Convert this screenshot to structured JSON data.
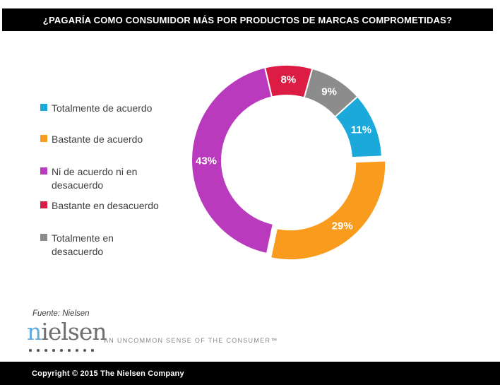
{
  "title_bar": {
    "text": "¿PAGARÍA COMO CONSUMIDOR MÁS POR PRODUCTOS DE MARCAS COMPROMETIDAS?"
  },
  "chart_data": {
    "type": "pie",
    "subtype": "donut",
    "title": "¿Pagaría como consumidor más por productos de marcas comprometidas?",
    "unit": "%",
    "direction": "clockwise",
    "start_angle_deg": 48,
    "inner_radius_ratio": 0.685,
    "legend_position": "left",
    "segments": [
      {
        "label": "Totalmente de acuerdo",
        "value": 11,
        "data_label": "11%",
        "color": "#1BA9DC",
        "exploded": false
      },
      {
        "label": "Bastante de acuerdo",
        "value": 29,
        "data_label": "29%",
        "color": "#F99B1C",
        "exploded": true
      },
      {
        "label": "Ni de acuerdo ni en desacuerdo",
        "value": 43,
        "data_label": "43%",
        "color": "#BA3ABD",
        "exploded": false
      },
      {
        "label": "Bastante en desacuerdo",
        "value": 8,
        "data_label": "8%",
        "color": "#DD1C43",
        "exploded": false
      },
      {
        "label": "Totalmente en desacuerdo",
        "value": 9,
        "data_label": "9%",
        "color": "#8C8C8C",
        "exploded": false
      }
    ]
  },
  "source_note": "Fuente: Nielsen",
  "logo": {
    "wordmark_first_letter": "n",
    "wordmark_rest": "ielsen",
    "dots_count": 9,
    "tagline": "AN UNCOMMON SENSE OF THE CONSUMER™",
    "blue": "#64ACE0",
    "gray": "#6D6E71"
  },
  "footer": {
    "text": "Copyright © 2015 The Nielsen Company"
  }
}
